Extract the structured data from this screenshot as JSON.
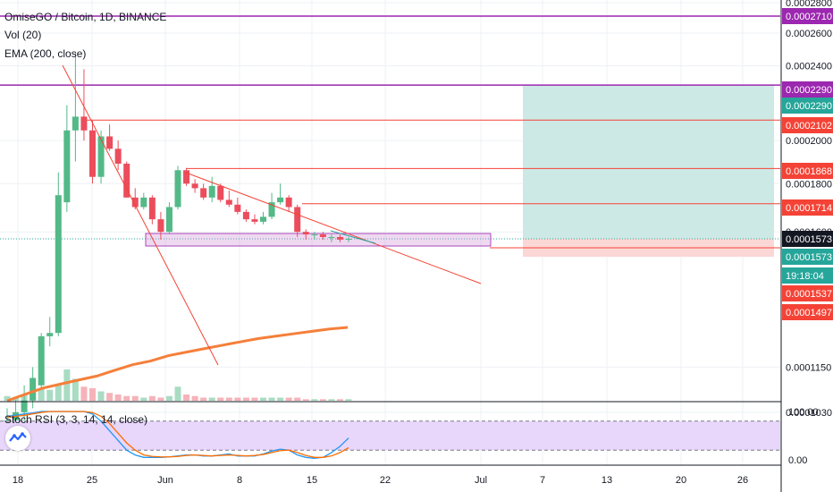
{
  "header": {
    "title": "OmiseGO / Bitcoin, 1D, BINANCE",
    "indicator_volume": "Vol (20)",
    "indicator_ema": "EMA (200, close)",
    "indicator_stoch": "Stoch RSI (3, 3, 14, 14, close)"
  },
  "colors": {
    "up": "#53b987",
    "down": "#eb4d5c",
    "ema": "#f57f3a",
    "purple_line": "#9c27b0",
    "trend_line": "#f44336",
    "target_zone": "#cde9e5",
    "stop_zone": "#fbd7d6",
    "stoch_k": "#2196f3",
    "stoch_d": "#ff6d00",
    "stoch_band": "#e8d6fb"
  },
  "chart_data": [
    {
      "type": "candlestick",
      "title": "OmiseGO / Bitcoin, 1D, BINANCE",
      "y_scale": "log",
      "price_axis_ticks": [
        "0.0002800",
        "0.0002600",
        "0.0002400",
        "0.0002000",
        "0.0001800",
        "0.0001600",
        "0.0001150",
        "0.0001030"
      ],
      "x_axis_ticks": [
        "18",
        "25",
        "Jun",
        "8",
        "15",
        "22",
        "Jul",
        "7",
        "13",
        "20",
        "26"
      ],
      "price_labels": [
        {
          "text": "0.0002710",
          "bg": "#9c27b0"
        },
        {
          "text": "0.0002290",
          "bg": "#9c27b0"
        },
        {
          "text": "0.0002290",
          "bg": "#26a69a"
        },
        {
          "text": "0.0002102",
          "bg": "#f44336"
        },
        {
          "text": "0.0001868",
          "bg": "#f44336"
        },
        {
          "text": "0.0001714",
          "bg": "#f44336"
        },
        {
          "text": "0.0001573",
          "bg": "#131722"
        },
        {
          "text": "0.0001573",
          "bg": "#26a69a"
        },
        {
          "text": "19:18:04",
          "bg": "#26a69a"
        },
        {
          "text": "0.0001537",
          "bg": "#f44336"
        },
        {
          "text": "0.0001497",
          "bg": "#f44336"
        }
      ],
      "horizontal_levels": [
        0.000271,
        0.000229,
        0.0002102,
        0.0001868,
        0.0001714,
        0.0001573
      ],
      "candles": [
        {
          "o": 0.0001,
          "h": 0.000104,
          "l": 9.8e-05,
          "c": 0.000101
        },
        {
          "o": 0.000101,
          "h": 0.000106,
          "l": 9.9e-05,
          "c": 0.000103
        },
        {
          "o": 0.000103,
          "h": 0.00011,
          "l": 0.0001,
          "c": 0.000106
        },
        {
          "o": 0.000106,
          "h": 0.000115,
          "l": 0.000104,
          "c": 0.000112
        },
        {
          "o": 0.00011,
          "h": 0.000125,
          "l": 0.000109,
          "c": 0.000124
        },
        {
          "o": 0.000124,
          "h": 0.00013,
          "l": 0.000121,
          "c": 0.000125
        },
        {
          "o": 0.000125,
          "h": 0.000185,
          "l": 0.000124,
          "c": 0.000175
        },
        {
          "o": 0.000172,
          "h": 0.000218,
          "l": 0.000168,
          "c": 0.000205
        },
        {
          "o": 0.000205,
          "h": 0.000248,
          "l": 0.00019,
          "c": 0.000212
        },
        {
          "o": 0.000212,
          "h": 0.000238,
          "l": 0.0002,
          "c": 0.000205
        },
        {
          "o": 0.000205,
          "h": 0.00021,
          "l": 0.00018,
          "c": 0.000183
        },
        {
          "o": 0.000183,
          "h": 0.000205,
          "l": 0.00018,
          "c": 0.000202
        },
        {
          "o": 0.000202,
          "h": 0.000208,
          "l": 0.000195,
          "c": 0.000196
        },
        {
          "o": 0.000196,
          "h": 0.0002,
          "l": 0.000186,
          "c": 0.000189
        },
        {
          "o": 0.000189,
          "h": 0.00019,
          "l": 0.000174,
          "c": 0.000174
        },
        {
          "o": 0.000174,
          "h": 0.000178,
          "l": 0.000169,
          "c": 0.00017
        },
        {
          "o": 0.00017,
          "h": 0.000176,
          "l": 0.000169,
          "c": 0.000174
        },
        {
          "o": 0.000174,
          "h": 0.000175,
          "l": 0.000163,
          "c": 0.000165
        },
        {
          "o": 0.000165,
          "h": 0.000168,
          "l": 0.000157,
          "c": 0.00016
        },
        {
          "o": 0.00016,
          "h": 0.000172,
          "l": 0.000159,
          "c": 0.00017
        },
        {
          "o": 0.00017,
          "h": 0.000188,
          "l": 0.000169,
          "c": 0.000186
        },
        {
          "o": 0.000186,
          "h": 0.000187,
          "l": 0.000179,
          "c": 0.00018
        },
        {
          "o": 0.00018,
          "h": 0.000182,
          "l": 0.000176,
          "c": 0.000178
        },
        {
          "o": 0.000178,
          "h": 0.00018,
          "l": 0.000173,
          "c": 0.000174
        },
        {
          "o": 0.000174,
          "h": 0.000183,
          "l": 0.000172,
          "c": 0.000179
        },
        {
          "o": 0.000179,
          "h": 0.00018,
          "l": 0.000172,
          "c": 0.000173
        },
        {
          "o": 0.000173,
          "h": 0.000177,
          "l": 0.00017,
          "c": 0.000171
        },
        {
          "o": 0.000171,
          "h": 0.000174,
          "l": 0.000167,
          "c": 0.000168
        },
        {
          "o": 0.000168,
          "h": 0.000169,
          "l": 0.000164,
          "c": 0.000165
        },
        {
          "o": 0.000165,
          "h": 0.000167,
          "l": 0.000163,
          "c": 0.000164
        },
        {
          "o": 0.000164,
          "h": 0.000168,
          "l": 0.000163,
          "c": 0.000166
        },
        {
          "o": 0.000166,
          "h": 0.000176,
          "l": 0.000165,
          "c": 0.000172
        },
        {
          "o": 0.000172,
          "h": 0.00018,
          "l": 0.000171,
          "c": 0.000174
        },
        {
          "o": 0.000174,
          "h": 0.000175,
          "l": 0.000168,
          "c": 0.00017
        },
        {
          "o": 0.00017,
          "h": 0.000171,
          "l": 0.000158,
          "c": 0.00016
        },
        {
          "o": 0.00016,
          "h": 0.000161,
          "l": 0.000157,
          "c": 0.000159
        },
        {
          "o": 0.000159,
          "h": 0.00016,
          "l": 0.000157,
          "c": 0.000159
        },
        {
          "o": 0.000159,
          "h": 0.00016,
          "l": 0.000157,
          "c": 0.000158
        },
        {
          "o": 0.000158,
          "h": 0.000159,
          "l": 0.000156,
          "c": 0.000158
        },
        {
          "o": 0.000158,
          "h": 0.000159,
          "l": 0.000156,
          "c": 0.000157
        },
        {
          "o": 0.000157,
          "h": 0.000158,
          "l": 0.000156,
          "c": 0.0001573
        }
      ],
      "volume": [
        3,
        2,
        4,
        6,
        8,
        7,
        10,
        20,
        14,
        9,
        8,
        6,
        5,
        4,
        3,
        3,
        2,
        3,
        2,
        3,
        9,
        4,
        3,
        2,
        2,
        2,
        2,
        2,
        2,
        2,
        2,
        2,
        2,
        2,
        2,
        1,
        1,
        1,
        1,
        1,
        1
      ],
      "ema_200": [
        0.0001,
        0.000103,
        0.000106,
        0.000108,
        0.00011,
        0.000112,
        0.000115,
        0.000118,
        0.00012,
        0.000123,
        0.000125,
        0.000127,
        0.000129,
        0.000131,
        0.000133,
        0.0001345,
        0.000136,
        0.0001375,
        0.000139,
        0.00014
      ]
    },
    {
      "type": "line",
      "title": "Stoch RSI (3, 3, 14, 14, close)",
      "y_axis_ticks": [
        "100.00",
        "0.00"
      ],
      "ylim": [
        0,
        100
      ],
      "bands": [
        80,
        20
      ],
      "series": [
        {
          "values": [
            90,
            92,
            95,
            97,
            100,
            100,
            100,
            100,
            100,
            100,
            95,
            80,
            60,
            40,
            20,
            10,
            5,
            5,
            5,
            6,
            8,
            10,
            10,
            8,
            8,
            10,
            12,
            8,
            8,
            8,
            12,
            18,
            22,
            20,
            10,
            5,
            3,
            5,
            15,
            28,
            45
          ]
        },
        {
          "values": [
            88,
            90,
            92,
            95,
            98,
            100,
            100,
            100,
            100,
            100,
            98,
            90,
            75,
            55,
            35,
            20,
            10,
            7,
            6,
            6,
            7,
            9,
            10,
            9,
            8,
            9,
            10,
            9,
            8,
            9,
            11,
            15,
            19,
            20,
            15,
            9,
            5,
            5,
            8,
            15,
            25
          ]
        }
      ]
    }
  ]
}
